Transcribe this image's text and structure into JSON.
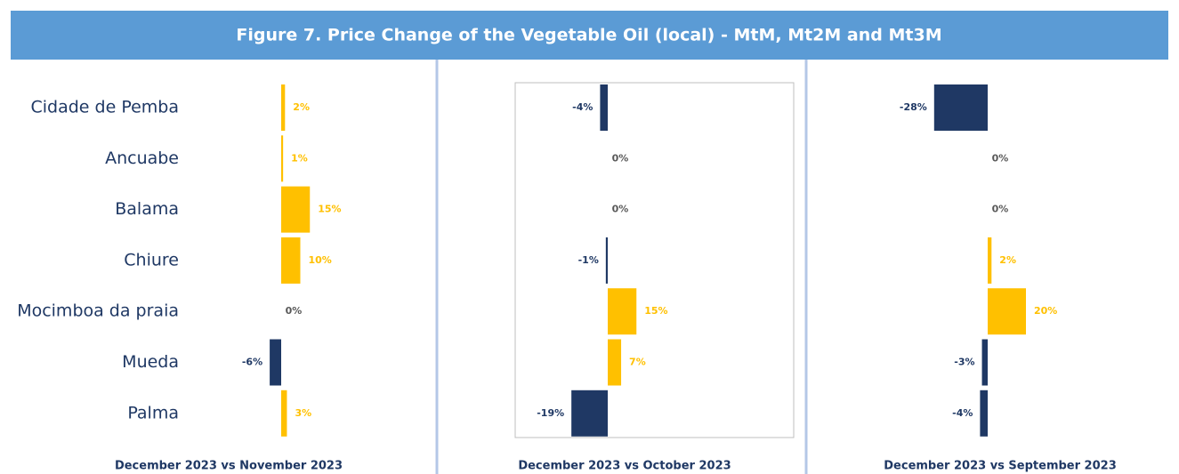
{
  "title": "Figure 7. Price Change of the Vegetable Oil (local) - MtM, Mt2M and Mt3M",
  "chart_data": [
    {
      "type": "bar",
      "subtitle": "December 2023 vs November 2023",
      "categories": [
        "Cidade de Pemba",
        "Ancuabe",
        "Balama",
        "Chiure",
        "Mocimboa da praia",
        "Mueda",
        "Palma"
      ],
      "values": [
        2,
        1,
        15,
        10,
        0,
        -6,
        3
      ],
      "value_labels": [
        "2%",
        "1%",
        "15%",
        "10%",
        "0%",
        "-6%",
        "3%"
      ],
      "positive_color": "#FFC000",
      "negative_color": "#1F3864"
    },
    {
      "type": "bar",
      "subtitle": "December 2023 vs October 2023",
      "values": [
        -4,
        0,
        0,
        -1,
        15,
        7,
        -19
      ],
      "value_labels": [
        "-4%",
        "0%",
        "0%",
        "-1%",
        "15%",
        "7%",
        "-19%"
      ],
      "positive_color": "#FFC000",
      "negative_color": "#1F3864"
    },
    {
      "type": "bar",
      "subtitle": "December 2023 vs September 2023",
      "values": [
        -28,
        0,
        0,
        2,
        20,
        -3,
        -4
      ],
      "value_labels": [
        "-28%",
        "0%",
        "0%",
        "2%",
        "20%",
        "-3%",
        "-4%"
      ],
      "positive_color": "#FFC000",
      "negative_color": "#1F3864"
    }
  ]
}
